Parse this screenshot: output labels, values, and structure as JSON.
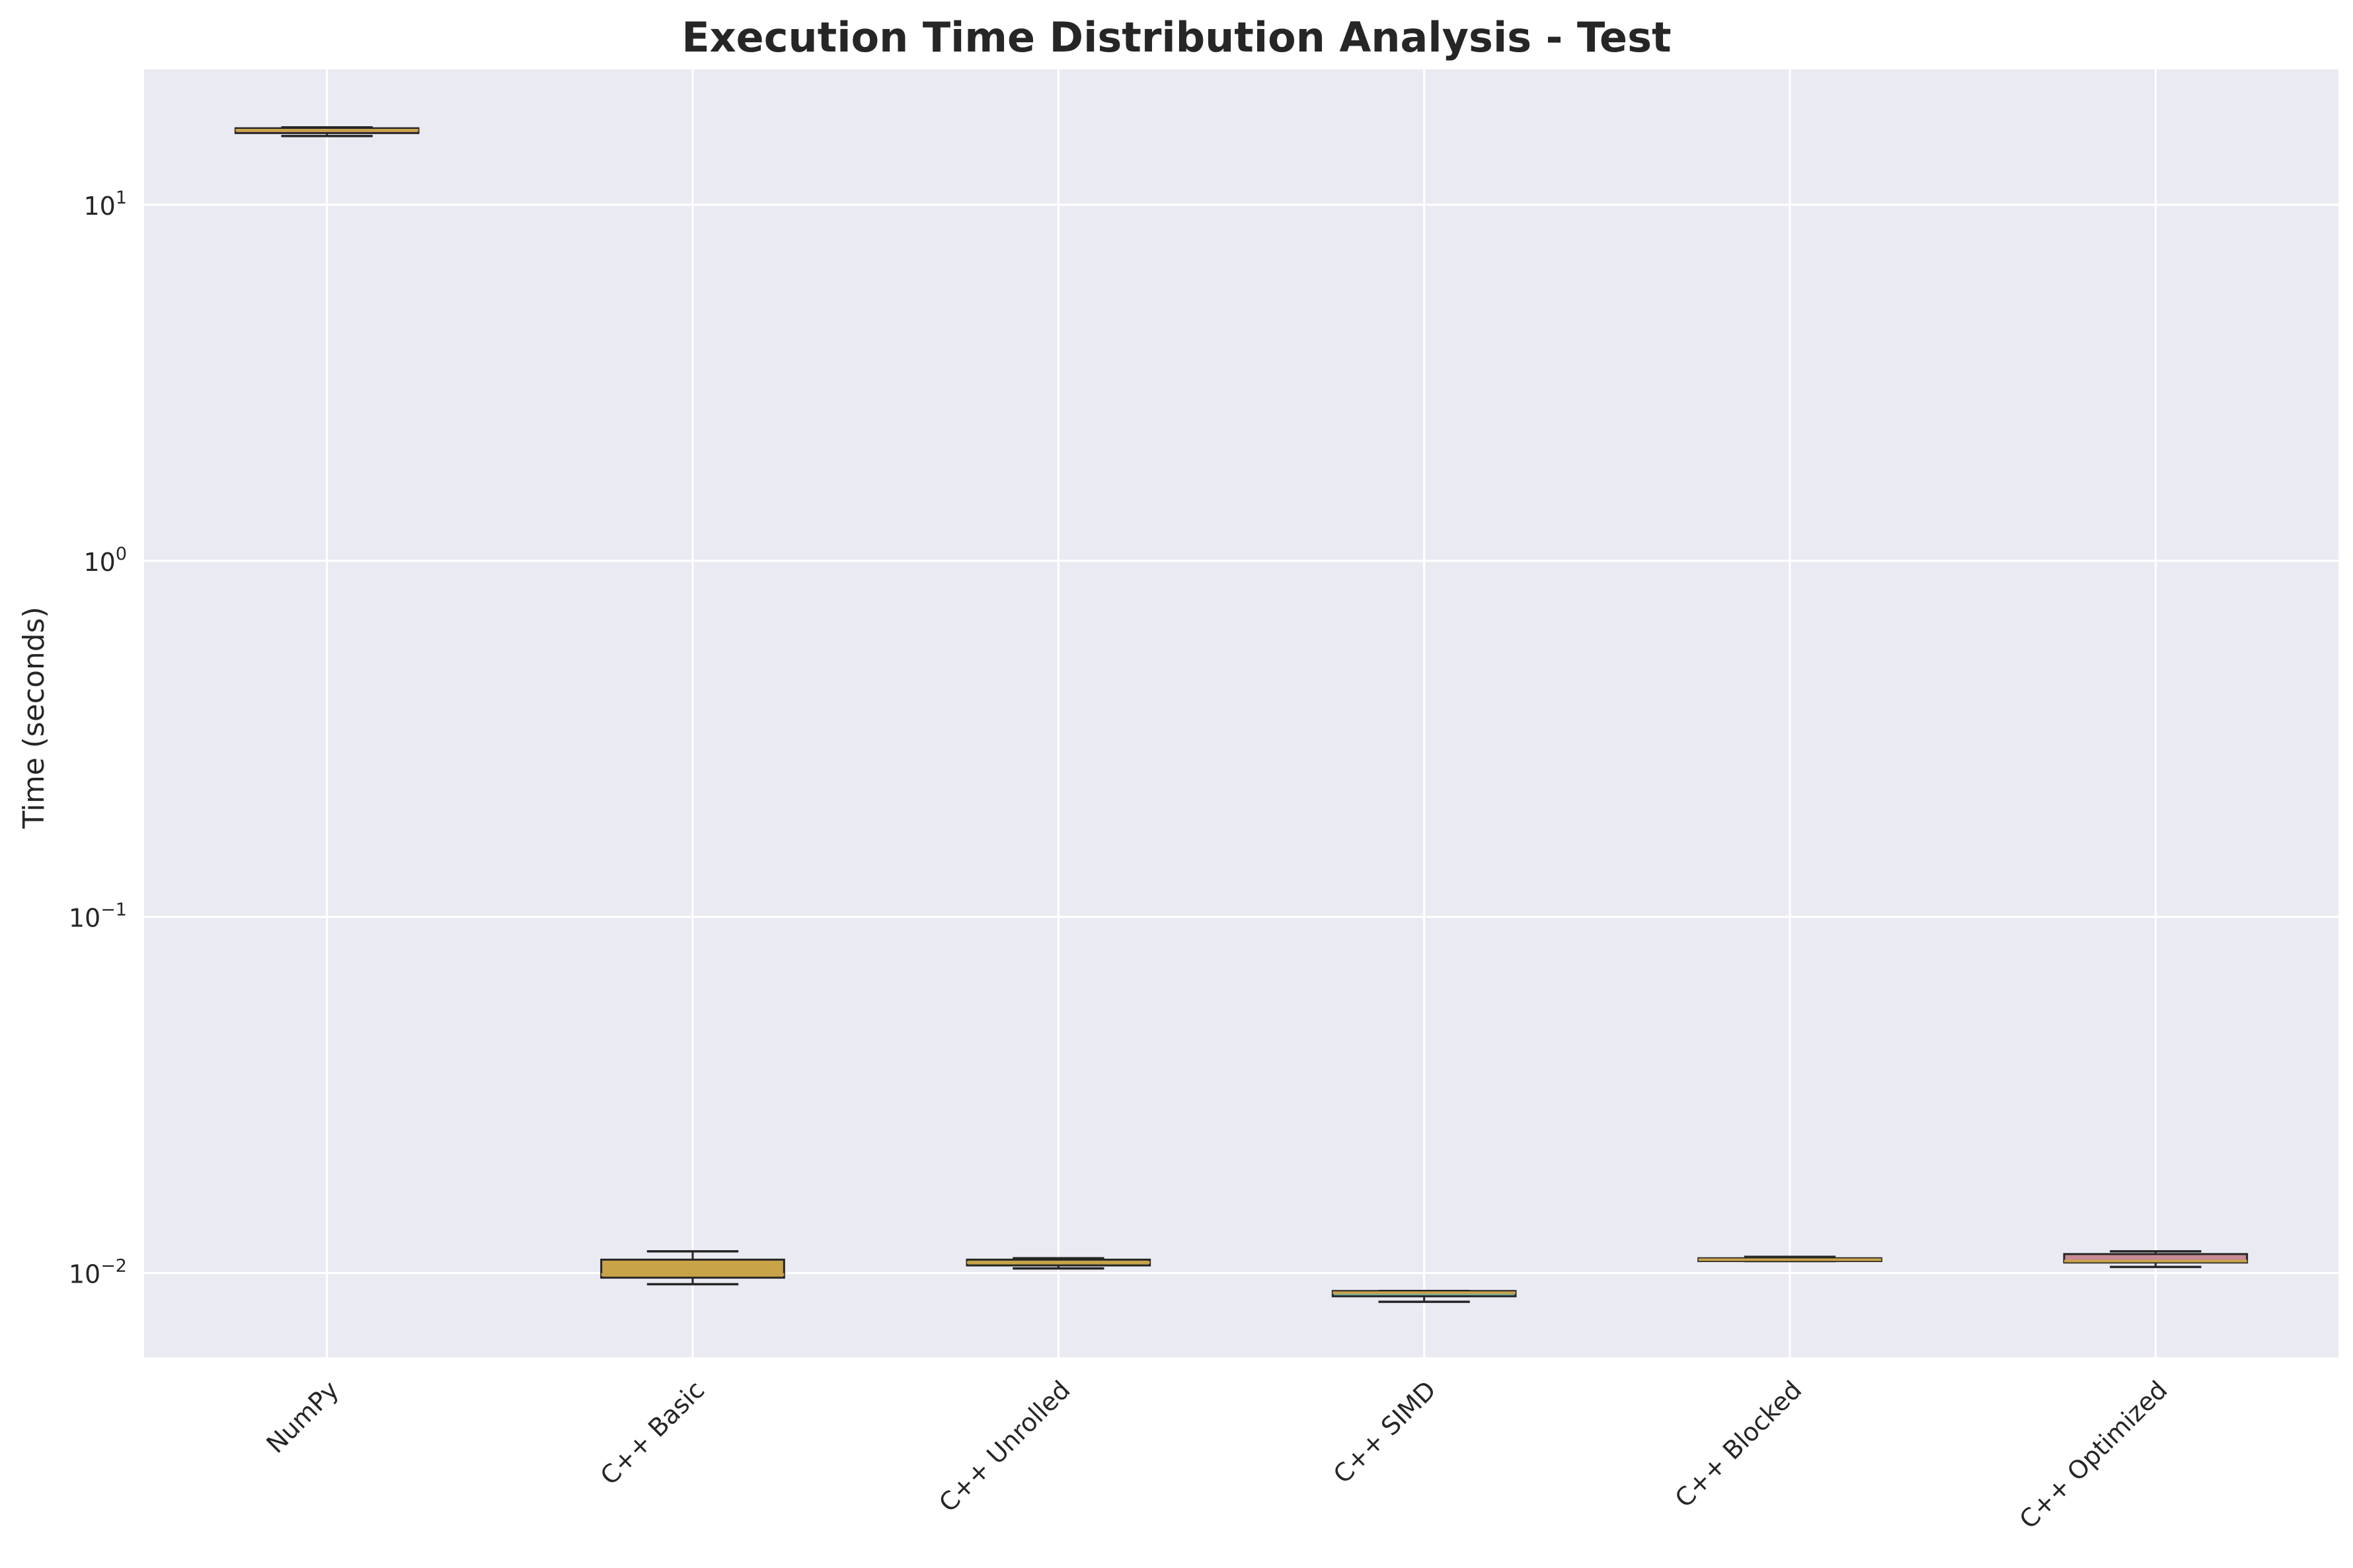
{
  "chart_data": {
    "type": "box",
    "title": "Execution Time Distribution Analysis - Test",
    "xlabel": "",
    "ylabel": "Time (seconds)",
    "yscale": "log",
    "ylim": [
      0.0058,
      24
    ],
    "yticks": [
      {
        "value": 0.01,
        "base": "10",
        "exp": "−2"
      },
      {
        "value": 0.1,
        "base": "10",
        "exp": "−1"
      },
      {
        "value": 1,
        "base": "10",
        "exp": "0"
      },
      {
        "value": 10,
        "base": "10",
        "exp": "1"
      }
    ],
    "grid": true,
    "legend": "none",
    "categories": [
      "NumPy",
      "C++ Basic",
      "C++ Unrolled",
      "C++ SIMD",
      "C++ Blocked",
      "C++ Optimized"
    ],
    "boxes": [
      {
        "category": "NumPy",
        "whislo": 15.6,
        "q1": 15.9,
        "median": 16.2,
        "q3": 16.4,
        "whishi": 16.5,
        "color": "#e0a16b"
      },
      {
        "category": "C++ Basic",
        "whislo": 0.0093,
        "q1": 0.0097,
        "median": 0.0099,
        "q3": 0.0109,
        "whishi": 0.0115,
        "color": "#c9a347"
      },
      {
        "category": "C++ Unrolled",
        "whislo": 0.0103,
        "q1": 0.0105,
        "median": 0.0107,
        "q3": 0.0109,
        "whishi": 0.011,
        "color": "#b8a748"
      },
      {
        "category": "C++ SIMD",
        "whislo": 0.0083,
        "q1": 0.0086,
        "median": 0.0088,
        "q3": 0.0089,
        "whishi": 0.0089,
        "color": "#6fae9c"
      },
      {
        "category": "C++ Blocked",
        "whislo": 0.0108,
        "q1": 0.0108,
        "median": 0.0109,
        "q3": 0.011,
        "whishi": 0.0111,
        "color": "#c9a347"
      },
      {
        "category": "C++ Optimized",
        "whislo": 0.0104,
        "q1": 0.0107,
        "median": 0.0108,
        "q3": 0.0113,
        "whishi": 0.0115,
        "color": "#c98a96"
      }
    ],
    "colors": {
      "plot_background": "#eaeaf2",
      "grid": "#ffffff",
      "box_edge": "#262626",
      "median": "#c8a24a",
      "text": "#262626"
    }
  }
}
